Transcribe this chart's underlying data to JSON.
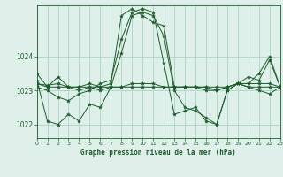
{
  "title": "Graphe pression niveau de la mer (hPa)",
  "bg_color": "#dff0ea",
  "grid_color": "#b0d8c8",
  "line_color": "#1a5c2a",
  "marker_color": "#1a5c2a",
  "xlim": [
    0,
    23
  ],
  "ylim": [
    1021.6,
    1025.5
  ],
  "yticks": [
    1022,
    1023,
    1024
  ],
  "xticks": [
    0,
    1,
    2,
    3,
    4,
    5,
    6,
    7,
    8,
    9,
    10,
    11,
    12,
    13,
    14,
    15,
    16,
    17,
    18,
    19,
    20,
    21,
    22,
    23
  ],
  "series": [
    [
      1023.5,
      1023.1,
      1023.4,
      1023.1,
      1023.1,
      1023.1,
      1023.1,
      1023.1,
      1023.1,
      1023.1,
      1023.1,
      1023.1,
      1023.1,
      1023.1,
      1023.1,
      1023.1,
      1023.1,
      1023.1,
      1023.1,
      1023.2,
      1023.1,
      1023.1,
      1023.1,
      1023.1
    ],
    [
      1023.3,
      1022.1,
      1022.0,
      1022.3,
      1022.1,
      1022.6,
      1022.5,
      1023.1,
      1024.1,
      1025.2,
      1025.3,
      1025.2,
      1024.6,
      1023.0,
      1022.5,
      1022.4,
      1022.2,
      1022.0,
      1023.0,
      1023.2,
      1023.1,
      1023.0,
      1022.9,
      1023.1
    ],
    [
      1023.2,
      1023.1,
      1023.1,
      1023.1,
      1023.0,
      1023.1,
      1023.0,
      1023.1,
      1023.1,
      1023.2,
      1023.2,
      1023.2,
      1023.1,
      1023.1,
      1023.1,
      1023.1,
      1023.0,
      1023.0,
      1023.1,
      1023.2,
      1023.2,
      1023.2,
      1023.2,
      1023.1
    ],
    [
      1023.1,
      1023.0,
      1022.8,
      1022.7,
      1022.9,
      1023.0,
      1023.2,
      1023.3,
      1024.5,
      1025.3,
      1025.4,
      1025.3,
      1023.8,
      1022.3,
      1022.4,
      1022.5,
      1022.1,
      1022.0,
      1023.0,
      1023.2,
      1023.4,
      1023.3,
      1023.9,
      1023.1
    ],
    [
      1023.2,
      1023.15,
      1023.2,
      1023.1,
      1023.1,
      1023.2,
      1023.1,
      1023.2,
      1025.2,
      1025.4,
      1025.2,
      1025.0,
      1024.9,
      1023.1,
      1023.1,
      1023.1,
      1023.1,
      1023.0,
      1023.1,
      1023.2,
      1023.2,
      1023.5,
      1024.0,
      1023.1
    ]
  ]
}
